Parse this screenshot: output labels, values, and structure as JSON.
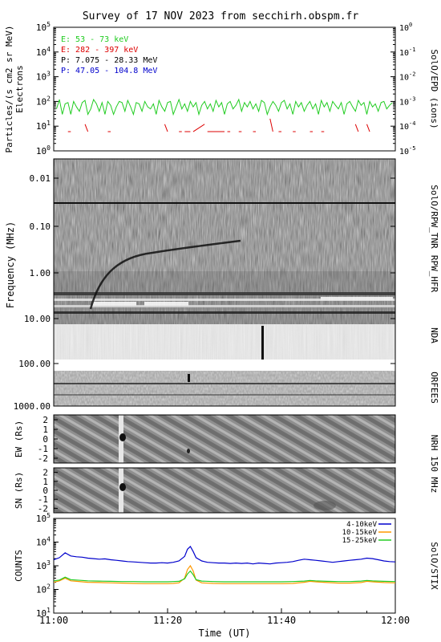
{
  "title": "Survey of 17 NOV 2023 from secchirh.obspm.fr",
  "colors": {
    "green": "#22cc22",
    "red": "#dd0000",
    "black": "#000000",
    "blue": "#0000cc",
    "orange": "#ff9900"
  },
  "chart_data": [
    {
      "type": "line",
      "id": "epd",
      "instrument_label": "SolO/EPD (ions)",
      "ylabel": "Particles/(s cm2 sr MeV)",
      "ylabel2": "Electrons",
      "y_scale": "log",
      "ylim": [
        1,
        100000
      ],
      "yticks": [
        "10^0",
        "10^1",
        "10^2",
        "10^3",
        "10^4",
        "10^5"
      ],
      "y2lim": [
        1e-05,
        1
      ],
      "y2ticks": [
        "10^-5",
        "10^-4",
        "10^-3",
        "10^-2",
        "10^-1",
        "10^0"
      ],
      "legend": [
        {
          "label": "E: 53 - 73 keV",
          "color": "#22cc22"
        },
        {
          "label": "E: 282 - 397 keV",
          "color": "#dd0000"
        },
        {
          "label": "P: 7.075 - 28.33 MeV",
          "color": "#000000"
        },
        {
          "label": "P: 47.05 - 104.8 MeV",
          "color": "#0000cc"
        }
      ],
      "series": [
        {
          "name": "E: 53 - 73 keV",
          "color": "#22cc22",
          "x": [
            0.5,
            1,
            1.5,
            2,
            2.5,
            3,
            3.5,
            4,
            4.5,
            5,
            5.5,
            6,
            6.5,
            7,
            7.5,
            8,
            8.5,
            9,
            9.5,
            10,
            10.5,
            11,
            11.5,
            12,
            12.5,
            13,
            13.5,
            14,
            14.5,
            15,
            15.5,
            16,
            16.5,
            17,
            17.5,
            18,
            18.5,
            19,
            19.5,
            20,
            20.5,
            21,
            21.5,
            22,
            22.5,
            23,
            23.5,
            24,
            24.5,
            25,
            25.5,
            26,
            26.5,
            27,
            27.5,
            28,
            28.5,
            29,
            29.5,
            30,
            30.5,
            31,
            31.5,
            32,
            32.5,
            33,
            33.5,
            34,
            34.5,
            35,
            35.5,
            36,
            36.5,
            37,
            37.5,
            38,
            38.5,
            39,
            39.5,
            40,
            40.5,
            41,
            41.5,
            42,
            42.5,
            43,
            43.5,
            44,
            44.5,
            45,
            45.5,
            46,
            46.5,
            47,
            47.5,
            48,
            48.5,
            49,
            49.5,
            50,
            50.5,
            51,
            51.5,
            52,
            52.5,
            53,
            53.5,
            54,
            54.5,
            55,
            55.5,
            56,
            56.5,
            57,
            57.5,
            58,
            58.5,
            59,
            59.5
          ],
          "values": [
            50,
            120,
            30,
            80,
            90,
            30,
            100,
            60,
            40,
            90,
            110,
            30,
            50,
            120,
            80,
            40,
            90,
            30,
            100,
            70,
            30,
            60,
            100,
            90,
            40,
            110,
            60,
            30,
            90,
            80,
            40,
            100,
            60,
            50,
            80,
            30,
            110,
            60,
            40,
            90,
            100,
            30,
            60,
            120,
            50,
            80,
            40,
            100,
            60,
            90,
            30,
            70,
            100,
            50,
            80,
            40,
            110,
            60,
            90,
            30,
            80,
            100,
            50,
            70,
            120,
            40,
            90,
            60,
            100,
            50,
            80,
            40,
            110,
            90,
            30,
            60,
            100,
            70,
            40,
            90,
            110,
            50,
            80,
            30,
            100,
            60,
            90,
            40,
            70,
            100,
            50,
            80,
            30,
            110,
            60,
            90,
            40,
            100,
            70,
            50,
            90,
            30,
            80,
            100,
            60,
            40,
            110,
            70,
            90,
            30,
            100,
            60,
            80,
            40,
            90,
            100,
            50,
            70,
            90
          ]
        },
        {
          "name": "E: 282 - 397 keV",
          "color": "#dd0000",
          "x": [
            2.5,
            3,
            5.5,
            6,
            9.5,
            10,
            19.5,
            20,
            22,
            22.5,
            23,
            24,
            24.5,
            26.5,
            27,
            30,
            30.5,
            31,
            32.5,
            33,
            35,
            35.5,
            38,
            38.5,
            39.5,
            40,
            42,
            42.5,
            45,
            45.5,
            47,
            47.5,
            53,
            53.5,
            55,
            55.5
          ],
          "values": [
            6,
            6,
            12,
            6,
            6,
            6,
            12,
            6,
            6,
            6,
            6,
            6,
            6,
            12,
            6,
            6,
            6,
            6,
            6,
            6,
            6,
            6,
            20,
            6,
            6,
            6,
            6,
            6,
            6,
            6,
            6,
            6,
            12,
            6,
            12,
            6
          ]
        },
        {
          "name": "P: 7.075 - 28.33 MeV",
          "color": "#000000",
          "x": [],
          "values": []
        },
        {
          "name": "P: 47.05 - 104.8 MeV",
          "color": "#0000cc",
          "x": [],
          "values": []
        }
      ]
    },
    {
      "type": "heatmap",
      "id": "radio",
      "ylabel": "Frequency (MHz)",
      "y_scale": "log",
      "labels_top": [
        "SolO/RPW_TNR",
        "RPW_HFR",
        "NDA"
      ],
      "label_bottom": "ORFEES",
      "yticks": [
        "0.01",
        "0.10",
        "1.00",
        "10.00",
        "100.00",
        "1000.00"
      ],
      "ylim": [
        0.004,
        2000
      ]
    },
    {
      "type": "heatmap",
      "id": "nrh",
      "instrument_label": "NRH 150 MHz",
      "panels": [
        {
          "ylabel": "EW (Rs)",
          "yticks": [
            "2",
            "1",
            "0",
            "-1",
            "-2"
          ],
          "ylim": [
            -2.5,
            2.5
          ]
        },
        {
          "ylabel": "SN (Rs)",
          "yticks": [
            "2",
            "1",
            "0",
            "-1",
            "-2"
          ],
          "ylim": [
            -2.5,
            2.5
          ]
        }
      ]
    },
    {
      "type": "line",
      "id": "stix",
      "instrument_label": "SolO/STIX",
      "ylabel": "COUNTS",
      "y_scale": "log",
      "ylim": [
        10,
        100000
      ],
      "yticks": [
        "10^1",
        "10^2",
        "10^3",
        "10^4",
        "10^5"
      ],
      "xlabel": "Time (UT)",
      "xticks": [
        "11:00",
        "11:20",
        "11:40",
        "12:00"
      ],
      "xlim": [
        0,
        60
      ],
      "series": [
        {
          "name": "4-10keV",
          "color": "#0000cc",
          "x": [
            0,
            1,
            2,
            3,
            4,
            5,
            6,
            7,
            8,
            9,
            10,
            11,
            12,
            13,
            14,
            15,
            16,
            17,
            18,
            19,
            20,
            21,
            22,
            23,
            23.5,
            24,
            24.5,
            25,
            26,
            27,
            28,
            29,
            30,
            31,
            32,
            33,
            34,
            35,
            36,
            37,
            38,
            39,
            40,
            41,
            42,
            43,
            44,
            45,
            46,
            47,
            48,
            49,
            50,
            51,
            52,
            53,
            54,
            55,
            56,
            57,
            58,
            59,
            60
          ],
          "values": [
            1800,
            2200,
            3500,
            2600,
            2400,
            2300,
            2100,
            2000,
            1900,
            1950,
            1800,
            1700,
            1600,
            1500,
            1450,
            1400,
            1350,
            1300,
            1300,
            1350,
            1300,
            1400,
            1600,
            2500,
            5000,
            6500,
            4000,
            2200,
            1600,
            1400,
            1350,
            1300,
            1300,
            1250,
            1300,
            1250,
            1300,
            1200,
            1300,
            1250,
            1200,
            1300,
            1350,
            1400,
            1500,
            1700,
            1900,
            1800,
            1700,
            1600,
            1500,
            1400,
            1500,
            1600,
            1700,
            1800,
            1900,
            2100,
            2000,
            1800,
            1600,
            1500,
            1450
          ]
        },
        {
          "name": "10-15keV",
          "color": "#ff9900",
          "x": [
            0,
            1,
            2,
            3,
            4,
            5,
            6,
            8,
            10,
            12,
            14,
            16,
            18,
            20,
            21,
            22,
            23,
            23.5,
            24,
            24.5,
            25,
            26,
            28,
            30,
            32,
            34,
            36,
            38,
            40,
            42,
            44,
            45,
            46,
            48,
            50,
            52,
            54,
            55,
            56,
            58,
            60
          ],
          "values": [
            200,
            230,
            300,
            230,
            220,
            210,
            200,
            195,
            190,
            185,
            180,
            175,
            175,
            175,
            180,
            190,
            300,
            700,
            1000,
            600,
            250,
            190,
            180,
            175,
            175,
            175,
            175,
            175,
            175,
            180,
            200,
            220,
            210,
            195,
            185,
            185,
            195,
            220,
            210,
            195,
            190
          ]
        },
        {
          "name": "15-25keV",
          "color": "#22cc22",
          "x": [
            0,
            1,
            2,
            3,
            4,
            5,
            6,
            8,
            10,
            12,
            14,
            16,
            18,
            20,
            21,
            22,
            23,
            23.5,
            24,
            24.5,
            25,
            26,
            28,
            30,
            32,
            34,
            36,
            38,
            40,
            42,
            44,
            45,
            46,
            48,
            50,
            52,
            54,
            55,
            56,
            58,
            60
          ],
          "values": [
            230,
            250,
            330,
            260,
            250,
            240,
            230,
            225,
            220,
            215,
            215,
            210,
            210,
            210,
            215,
            220,
            280,
            450,
            600,
            420,
            260,
            225,
            215,
            210,
            210,
            210,
            210,
            210,
            210,
            215,
            225,
            240,
            230,
            220,
            215,
            215,
            225,
            240,
            230,
            220,
            215
          ]
        }
      ]
    }
  ]
}
